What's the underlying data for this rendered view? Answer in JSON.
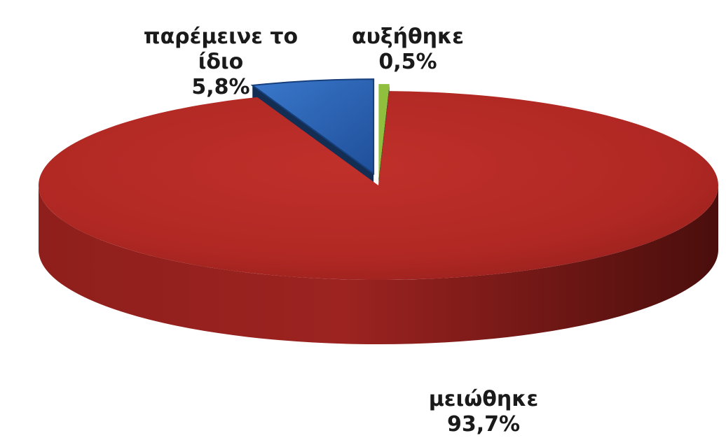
{
  "chart_data": {
    "type": "pie",
    "style": "3d",
    "slices": [
      {
        "label_lines": [
          "αυξήθηκε"
        ],
        "value": 0.5,
        "value_label": "0,5%",
        "color": "#8fbf3c",
        "exploded": true
      },
      {
        "label_lines": [
          "μειώθηκε"
        ],
        "value": 93.7,
        "value_label": "93,7%",
        "color": "#b42a26",
        "exploded": false
      },
      {
        "label_lines": [
          "παρέμεινε το",
          "ίδιο"
        ],
        "value": 5.8,
        "value_label": "5,8%",
        "color": "#2a64b8",
        "exploded": true
      }
    ]
  }
}
